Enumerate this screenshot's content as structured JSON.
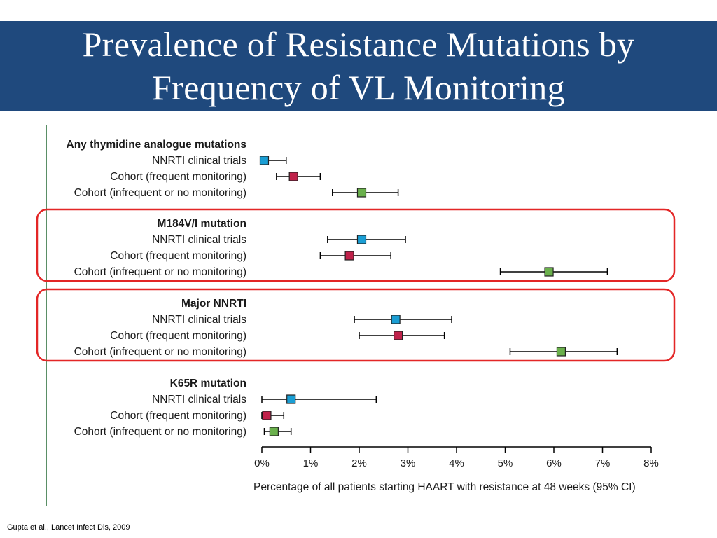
{
  "slide": {
    "title_line1": "Prevalence of Resistance Mutations by",
    "title_line2": "Frequency of VL Monitoring",
    "citation": "Gupta et al., Lancet Infect Dis, 2009",
    "banner_color": "#1f497d",
    "highlight_color": "#e32626"
  },
  "chart_data": {
    "type": "forest",
    "xlabel": "Percentage of all patients starting HAART with resistance at 48 weeks (95% CI)",
    "xlim": [
      0,
      8
    ],
    "xticks": [
      "0%",
      "1%",
      "2%",
      "3%",
      "4%",
      "5%",
      "6%",
      "7%",
      "8%"
    ],
    "series": [
      {
        "name": "NNRTI clinical trials",
        "color": "#1a9ed4"
      },
      {
        "name": "Cohort (frequent monitoring)",
        "color": "#c0214a"
      },
      {
        "name": "Cohort (infrequent or no monitoring)",
        "color": "#6ab04c"
      }
    ],
    "groups": [
      {
        "name": "Any thymidine analogue mutations",
        "highlighted": false,
        "rows": [
          {
            "label": "NNRTI clinical trials",
            "estimate": 0.05,
            "lower": 0.0,
            "upper": 0.5
          },
          {
            "label": "Cohort (frequent monitoring)",
            "estimate": 0.65,
            "lower": 0.3,
            "upper": 1.2
          },
          {
            "label": "Cohort (infrequent or no monitoring)",
            "estimate": 2.05,
            "lower": 1.45,
            "upper": 2.8
          }
        ]
      },
      {
        "name": "M184V/I mutation",
        "highlighted": true,
        "rows": [
          {
            "label": "NNRTI clinical trials",
            "estimate": 2.05,
            "lower": 1.35,
            "upper": 2.95
          },
          {
            "label": "Cohort (frequent monitoring)",
            "estimate": 1.8,
            "lower": 1.2,
            "upper": 2.65
          },
          {
            "label": "Cohort (infrequent or no monitoring)",
            "estimate": 5.9,
            "lower": 4.9,
            "upper": 7.1
          }
        ]
      },
      {
        "name": "Major NNRTI",
        "highlighted": true,
        "rows": [
          {
            "label": "NNRTI clinical trials",
            "estimate": 2.75,
            "lower": 1.9,
            "upper": 3.9
          },
          {
            "label": "Cohort (frequent monitoring)",
            "estimate": 2.8,
            "lower": 2.0,
            "upper": 3.75
          },
          {
            "label": "Cohort (infrequent or no monitoring)",
            "estimate": 6.15,
            "lower": 5.1,
            "upper": 7.3
          }
        ]
      },
      {
        "name": "K65R mutation",
        "highlighted": false,
        "rows": [
          {
            "label": "NNRTI clinical trials",
            "estimate": 0.6,
            "lower": 0.0,
            "upper": 2.35
          },
          {
            "label": "Cohort (frequent monitoring)",
            "estimate": 0.1,
            "lower": 0.0,
            "upper": 0.45
          },
          {
            "label": "Cohort (infrequent or no monitoring)",
            "estimate": 0.25,
            "lower": 0.05,
            "upper": 0.6
          }
        ]
      }
    ]
  }
}
